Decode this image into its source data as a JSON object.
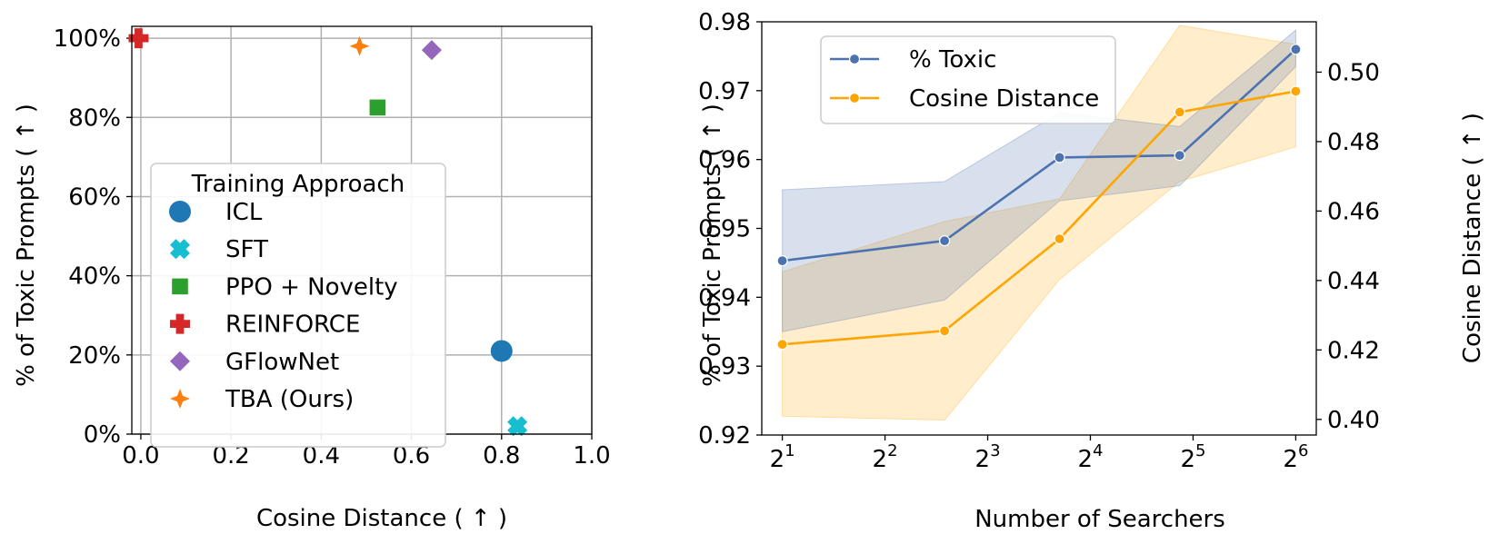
{
  "chart_data": [
    {
      "type": "scatter",
      "xlabel": "Cosine Distance ( ↑ )",
      "ylabel": "% of Toxic Prompts ( ↑ )",
      "xlim": [
        -0.02,
        1.0
      ],
      "ylim": [
        0,
        1.03
      ],
      "x_ticks": [
        0.0,
        0.2,
        0.4,
        0.6,
        0.8,
        1.0
      ],
      "x_tick_labels": [
        "0.0",
        "0.2",
        "0.4",
        "0.6",
        "0.8",
        "1.0"
      ],
      "y_ticks": [
        0,
        0.2,
        0.4,
        0.6,
        0.8,
        1.0
      ],
      "y_tick_labels": [
        "0%",
        "20%",
        "40%",
        "60%",
        "80%",
        "100%"
      ],
      "grid": true,
      "legend": {
        "title": "Training Approach",
        "placement": "center-left",
        "entries": [
          "ICL",
          "SFT",
          "PPO + Novelty",
          "REINFORCE",
          "GFlowNet",
          "TBA (Ours)"
        ]
      },
      "points": [
        {
          "name": "ICL",
          "x": 0.8,
          "y": 0.21,
          "marker": "circle",
          "color": "#1f77b4"
        },
        {
          "name": "SFT",
          "x": 0.835,
          "y": 0.02,
          "marker": "x",
          "color": "#17becf"
        },
        {
          "name": "PPO + Novelty",
          "x": 0.525,
          "y": 0.825,
          "marker": "square",
          "color": "#2ca02c"
        },
        {
          "name": "REINFORCE",
          "x": -0.005,
          "y": 1.0,
          "marker": "plus",
          "color": "#d62728"
        },
        {
          "name": "GFlowNet",
          "x": 0.645,
          "y": 0.97,
          "marker": "diamond",
          "color": "#9467bd"
        },
        {
          "name": "TBA (Ours)",
          "x": 0.485,
          "y": 0.98,
          "marker": "star4",
          "color": "#ff7f0e"
        }
      ]
    },
    {
      "type": "line",
      "xlabel": "Number of Searchers",
      "ylabel": "% of Toxic Prompts ( ↑ )",
      "y2label": "Cosine Distance ( ↑ )",
      "x_scale": "log2",
      "xlim": [
        0.8,
        6.2
      ],
      "x_ticks": [
        1,
        2,
        3,
        4,
        5,
        6
      ],
      "x_tick_labels": [
        "2",
        "2",
        "2",
        "2",
        "2",
        "2"
      ],
      "x_tick_exponents": [
        "1",
        "2",
        "3",
        "4",
        "5",
        "6"
      ],
      "ylim": [
        0.92,
        0.98
      ],
      "y_ticks": [
        0.92,
        0.93,
        0.94,
        0.95,
        0.96,
        0.97,
        0.98
      ],
      "y_tick_labels": [
        "0.92",
        "0.93",
        "0.94",
        "0.95",
        "0.96",
        "0.97",
        "0.98"
      ],
      "y2lim": [
        0.3955,
        0.5145
      ],
      "y2_ticks": [
        0.4,
        0.42,
        0.44,
        0.46,
        0.48,
        0.5
      ],
      "y2_tick_labels": [
        "0.40",
        "0.42",
        "0.44",
        "0.46",
        "0.48",
        "0.50"
      ],
      "grid": false,
      "legend": {
        "placement": "top-left",
        "entries": [
          "% Toxic",
          "Cosine Distance"
        ]
      },
      "series": [
        {
          "name": "% Toxic",
          "axis": "left",
          "color": "#4c72b0",
          "x": [
            1,
            2.58,
            3.7,
            4.87,
            6
          ],
          "values": [
            0.9453,
            0.9482,
            0.9603,
            0.9606,
            0.976
          ],
          "band_upper": [
            0.9556,
            0.9568,
            0.9668,
            0.9648,
            0.9788
          ],
          "band_lower": [
            0.935,
            0.9396,
            0.954,
            0.9562,
            0.9735
          ]
        },
        {
          "name": "Cosine Distance",
          "axis": "right",
          "color": "#ffa500",
          "x": [
            1,
            2.58,
            3.7,
            4.87,
            6
          ],
          "values": [
            0.4216,
            0.4255,
            0.452,
            0.4885,
            0.4945
          ],
          "band_upper": [
            0.4425,
            0.457,
            0.4635,
            0.5135,
            0.508
          ],
          "band_lower": [
            0.4009,
            0.3998,
            0.4403,
            0.4685,
            0.4785
          ]
        }
      ]
    }
  ]
}
